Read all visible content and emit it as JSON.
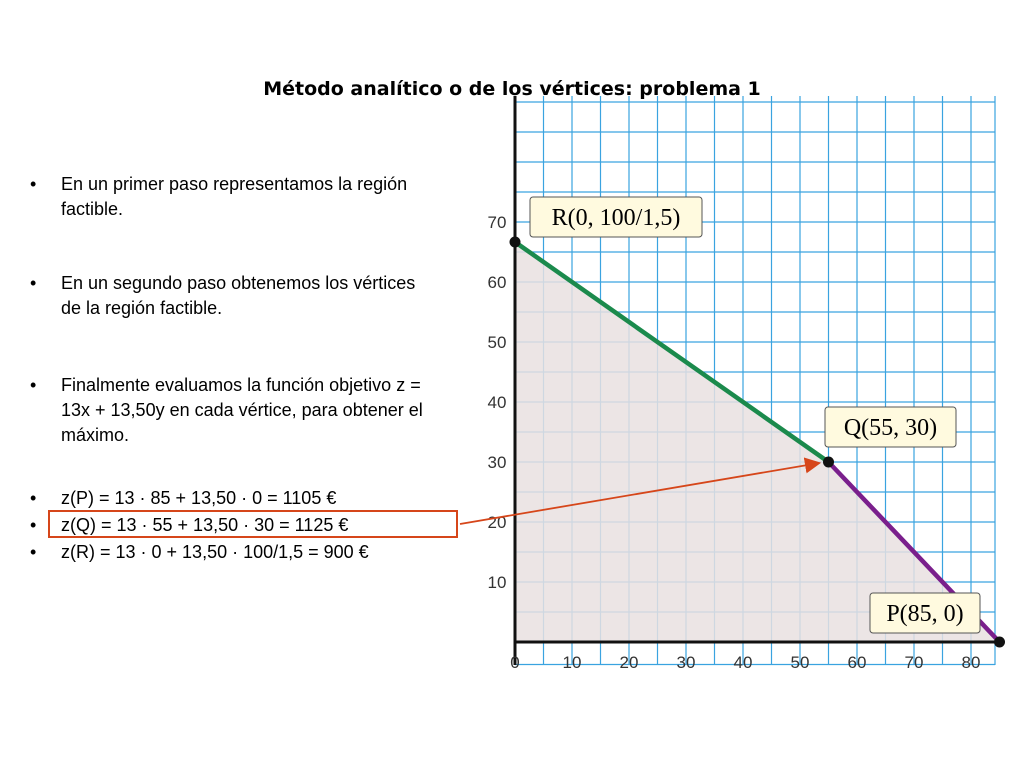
{
  "slide": {
    "title": "Método analítico o de los vértices: problema 1"
  },
  "bullets": [
    "En un primer paso representamos la región factible.",
    "En un segundo paso obtenemos los vértices de la región factible.",
    "Finalmente evaluamos la función objetivo z = 13x + 13,50y en cada vértice, para obtener el máximo.",
    "z(P) = 13 · 85 + 13,50 · 0 = 1105 €",
    "z(Q) = 13 · 55 + 13,50 · 30 = 1125 €",
    "z(R) = 13 · 0 + 13,50 · 100/1,5 = 900 €"
  ],
  "bullet_marker": "•",
  "highlighted_bullet": 4,
  "chart_data": {
    "type": "area",
    "xlim": [
      0,
      85
    ],
    "ylim": [
      0,
      90
    ],
    "grid": true,
    "xticks": [
      0,
      10,
      20,
      30,
      40,
      50,
      60,
      70,
      80
    ],
    "yticks": [
      10,
      20,
      30,
      40,
      50,
      60,
      70
    ],
    "feasible_region": [
      [
        0,
        0
      ],
      [
        0,
        66.67
      ],
      [
        55,
        30
      ],
      [
        85,
        0
      ]
    ],
    "region_color": "#e9e1e1",
    "segments": [
      {
        "from": [
          0,
          66.67
        ],
        "to": [
          55,
          30
        ],
        "color": "#1b8a4c"
      },
      {
        "from": [
          55,
          30
        ],
        "to": [
          85,
          0
        ],
        "color": "#7a1f8c"
      }
    ],
    "vertices": [
      {
        "label": "R(0, 100/1,5)",
        "x": 0,
        "y": 66.67
      },
      {
        "label": "Q(55, 30)",
        "x": 55,
        "y": 30
      },
      {
        "label": "P(85, 0)",
        "x": 85,
        "y": 0
      }
    ],
    "arrow": {
      "to_vertex": "Q(55, 30)",
      "color": "#d6461a"
    }
  }
}
